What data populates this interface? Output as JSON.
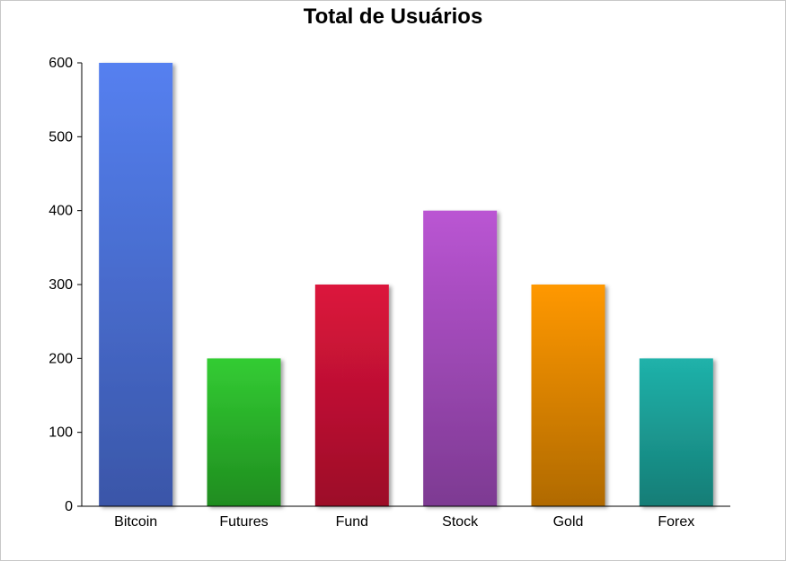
{
  "chart_data": {
    "type": "bar",
    "title": "Total de Usuários",
    "xlabel": "",
    "ylabel": "",
    "categories": [
      "Bitcoin",
      "Futures",
      "Fund",
      "Stock",
      "Gold",
      "Forex"
    ],
    "values": [
      600,
      200,
      300,
      400,
      300,
      200
    ],
    "ylim": [
      0,
      600
    ],
    "yticks": [
      0,
      100,
      200,
      300,
      400,
      500,
      600
    ],
    "grid": false,
    "legend": "none",
    "colors": [
      {
        "top": "#5580F0",
        "bottom": "#3A56A8"
      },
      {
        "top": "#33CC33",
        "bottom": "#1F8C1F"
      },
      {
        "top": "#DC143C",
        "bottom": "#9C0D28"
      },
      {
        "top": "#BA55D3",
        "bottom": "#7D3A92"
      },
      {
        "top": "#FF9800",
        "bottom": "#B06A05"
      },
      {
        "top": "#20B2AA",
        "bottom": "#157D76"
      }
    ]
  }
}
